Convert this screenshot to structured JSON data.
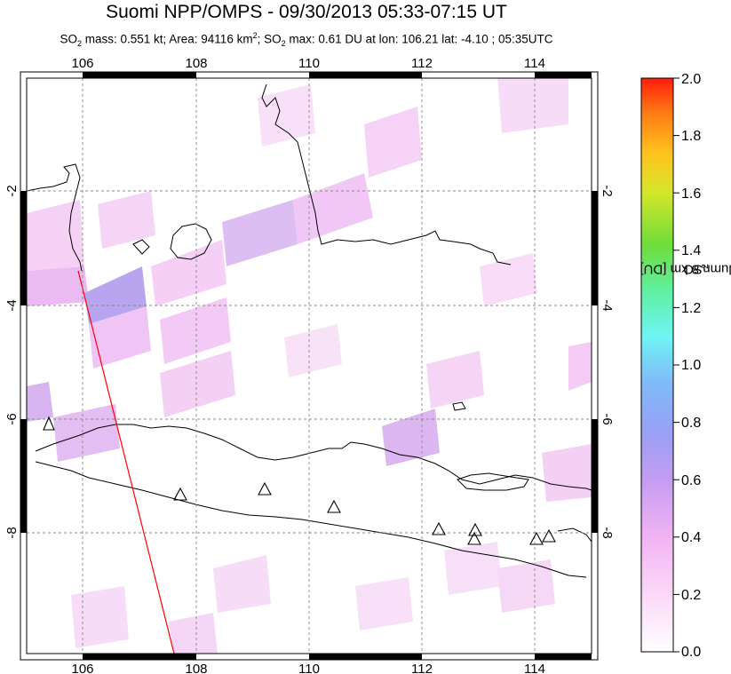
{
  "header": {
    "title": "Suomi NPP/OMPS - 09/30/2013 05:33-07:15 UT",
    "subtitle_parts": {
      "so2_a": "SO",
      "so2_a_sub": "2",
      "mass": " mass: 0.551 kt; Area: 94116 km",
      "area_sup": "2",
      "sep": "; ",
      "so2_b": "SO",
      "so2_b_sub": "2",
      "rest": " max: 0.61 DU at lon: 106.21 lat: -4.10 ; 05:35UTC"
    }
  },
  "map": {
    "lon_range": [
      105,
      115
    ],
    "lat_range": [
      -10,
      0
    ],
    "lon_ticks": [
      "106",
      "108",
      "110",
      "112",
      "114"
    ],
    "lat_ticks_left": [
      "-2",
      "-4",
      "-6",
      "-8"
    ],
    "lat_ticks_right": [
      "-2",
      "-4",
      "-6",
      "-8"
    ],
    "volcano_marker": "triangle-icon",
    "swath_edge_color": "#ff0000"
  },
  "colorbar": {
    "title_main": "SO",
    "title_sub": "2",
    "title_rest": " column 8 km [DU]",
    "ticks": [
      "2.0",
      "1.8",
      "1.6",
      "1.4",
      "1.2",
      "1.0",
      "0.8",
      "0.6",
      "0.4",
      "0.2",
      "0.0"
    ],
    "range": [
      0,
      2
    ]
  }
}
